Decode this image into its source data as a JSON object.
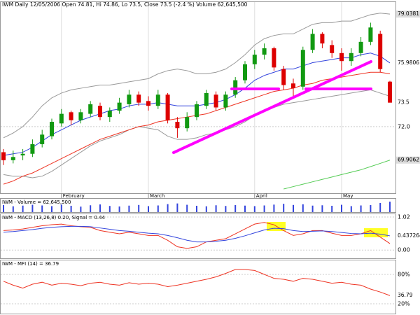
{
  "chart_data": [
    {
      "type": "candlestick",
      "title": "IWM Daily 12/05/2006 Open 74.81, Hi 74.86, Lo 73.5, Close 73.5 (-2.4 %) Volume 62,645,500",
      "categories": [
        null,
        null,
        null,
        null,
        null,
        null,
        "February",
        null,
        null,
        null,
        null,
        null,
        null,
        null,
        null,
        "March",
        null,
        null,
        null,
        null,
        null,
        null,
        null,
        null,
        null,
        null,
        "April",
        null,
        null,
        null,
        null,
        null,
        null,
        null,
        null,
        "May",
        null,
        null,
        null,
        null,
        null
      ],
      "open": [
        70.4,
        69.9,
        70.2,
        70.3,
        70.9,
        71.4,
        72.2,
        72.9,
        72.4,
        72.8,
        73.3,
        72.6,
        73.0,
        73.4,
        74.0,
        73.6,
        73.3,
        74.0,
        72.3,
        71.9,
        72.6,
        73.3,
        74.0,
        73.2,
        74.0,
        74.9,
        75.9,
        76.5,
        76.9,
        75.6,
        74.7,
        74.5,
        76.8,
        77.8,
        77.1,
        76.6,
        76.1,
        76.6,
        77.3,
        77.8,
        74.81
      ],
      "high": [
        70.6,
        70.5,
        70.6,
        71.2,
        71.8,
        72.5,
        73.1,
        73.0,
        73.1,
        73.6,
        73.5,
        73.2,
        73.8,
        74.3,
        74.2,
        73.9,
        74.3,
        74.1,
        72.6,
        72.9,
        73.6,
        74.3,
        74.2,
        74.2,
        75.1,
        76.1,
        76.8,
        77.2,
        77.0,
        75.8,
        75.0,
        77.0,
        78.1,
        77.9,
        77.4,
        76.9,
        76.9,
        77.6,
        78.5,
        78.0,
        74.86
      ],
      "low": [
        69.6,
        69.7,
        69.9,
        70.1,
        70.7,
        71.2,
        72.0,
        72.1,
        72.2,
        72.6,
        72.4,
        72.3,
        72.8,
        73.2,
        73.3,
        73.0,
        73.1,
        72.2,
        71.3,
        71.7,
        72.4,
        73.1,
        73.0,
        73.0,
        73.8,
        74.7,
        75.6,
        76.2,
        75.5,
        74.3,
        73.9,
        74.3,
        76.6,
        76.9,
        76.3,
        75.5,
        75.8,
        76.4,
        77.1,
        75.4,
        73.5
      ],
      "close": [
        69.9,
        70.1,
        70.3,
        70.9,
        71.5,
        72.3,
        72.8,
        72.4,
        72.9,
        73.4,
        72.6,
        73.0,
        73.5,
        74.0,
        73.5,
        73.3,
        74.0,
        72.4,
        71.9,
        72.6,
        73.4,
        74.1,
        73.2,
        74.0,
        74.9,
        75.9,
        76.5,
        76.9,
        75.7,
        74.6,
        74.4,
        76.8,
        77.8,
        77.2,
        76.6,
        76.1,
        76.6,
        77.3,
        78.2,
        75.6,
        73.5
      ],
      "up_color": "#119911",
      "down_color": "#dd0000",
      "series": [
        {
          "color": "#999999",
          "values": [
            71.3,
            71.6,
            72.0,
            72.6,
            73.3,
            73.8,
            74.1,
            74.3,
            74.4,
            74.5,
            74.6,
            74.6,
            74.7,
            74.8,
            74.9,
            75.0,
            75.3,
            75.5,
            75.6,
            75.5,
            75.3,
            75.3,
            75.4,
            75.6,
            76.0,
            76.5,
            77.1,
            77.5,
            77.7,
            77.8,
            77.8,
            78.1,
            78.4,
            78.5,
            78.5,
            78.6,
            78.6,
            78.8,
            79.0,
            79.1,
            79.0381
          ]
        },
        {
          "color": "#999999",
          "values": [
            69.0,
            68.9,
            68.9,
            68.8,
            68.9,
            69.2,
            69.6,
            70.0,
            70.4,
            70.8,
            71.1,
            71.3,
            71.5,
            71.8,
            72.0,
            71.9,
            71.8,
            71.4,
            71.2,
            71.2,
            71.3,
            71.5,
            71.6,
            71.8,
            72.0,
            72.3,
            72.7,
            73.0,
            73.2,
            73.4,
            73.5,
            73.6,
            73.7,
            73.8,
            73.9,
            74.0,
            74.1,
            74.2,
            74.3,
            74.1,
            73.9
          ]
        },
        {
          "color": "#3344dd",
          "values": [
            70.2,
            70.3,
            70.4,
            70.7,
            71.1,
            71.5,
            71.8,
            72.1,
            72.4,
            72.6,
            72.8,
            73.0,
            73.1,
            73.3,
            73.4,
            73.4,
            73.5,
            73.4,
            73.3,
            73.3,
            73.3,
            73.4,
            73.5,
            73.7,
            74.0,
            74.4,
            74.9,
            75.2,
            75.4,
            75.6,
            75.6,
            75.8,
            76.0,
            76.1,
            76.2,
            76.3,
            76.3,
            76.5,
            76.6,
            76.4,
            75.9806
          ]
        },
        {
          "color": "#ee3322",
          "values": [
            68.4,
            68.6,
            68.9,
            69.1,
            69.4,
            69.7,
            70.0,
            70.3,
            70.6,
            70.9,
            71.2,
            71.4,
            71.6,
            71.8,
            72.0,
            72.1,
            72.3,
            72.4,
            72.5,
            72.6,
            72.7,
            72.8,
            73.0,
            73.2,
            73.4,
            73.6,
            73.8,
            74.0,
            74.2,
            74.3,
            74.4,
            74.6,
            74.7,
            74.9,
            75.0,
            75.1,
            75.2,
            75.3,
            75.4,
            75.4,
            75.3
          ]
        },
        {
          "color": "#55cc55",
          "values": [
            null,
            null,
            null,
            null,
            null,
            null,
            null,
            null,
            null,
            null,
            null,
            null,
            null,
            null,
            null,
            null,
            null,
            null,
            null,
            null,
            null,
            null,
            null,
            null,
            null,
            null,
            null,
            null,
            null,
            68.1,
            68.25,
            68.4,
            68.55,
            68.7,
            68.85,
            69.0,
            69.15,
            69.3,
            69.5,
            69.7,
            69.9062
          ]
        }
      ],
      "ylim": [
        67.88,
        79.7
      ],
      "yticks": [
        {
          "value": 72,
          "label": "72.0"
        }
      ],
      "grid": true
    },
    {
      "type": "bar",
      "title": "IWM - Volume = 62,645,500",
      "color": "#3344dd",
      "values": [
        42000000,
        35000000,
        39000000,
        44000000,
        40000000,
        36000000,
        45000000,
        38000000,
        33000000,
        41000000,
        46000000,
        37000000,
        34000000,
        39000000,
        43000000,
        36000000,
        40000000,
        48000000,
        52000000,
        44000000,
        38000000,
        35000000,
        41000000,
        37000000,
        42000000,
        39000000,
        36000000,
        40000000,
        45000000,
        50000000,
        43000000,
        47000000,
        39000000,
        41000000,
        38000000,
        44000000,
        36000000,
        40000000,
        42000000,
        55000000,
        62645500
      ],
      "ylim": [
        0,
        80000000
      ]
    },
    {
      "type": "line",
      "title": "IWM - MACD (13,26,8) 0.20, Signal = 0.44",
      "series": [
        {
          "color": "#ee3322",
          "values": [
            0.6,
            0.62,
            0.65,
            0.7,
            0.75,
            0.78,
            0.8,
            0.75,
            0.72,
            0.7,
            0.6,
            0.55,
            0.5,
            0.55,
            0.5,
            0.45,
            0.45,
            0.3,
            0.1,
            0.05,
            0.1,
            0.25,
            0.3,
            0.35,
            0.5,
            0.65,
            0.8,
            0.85,
            0.78,
            0.6,
            0.45,
            0.5,
            0.6,
            0.6,
            0.52,
            0.45,
            0.45,
            0.5,
            0.6,
            0.4,
            0.2
          ]
        },
        {
          "color": "#3344dd",
          "values": [
            0.55,
            0.57,
            0.6,
            0.63,
            0.67,
            0.7,
            0.72,
            0.73,
            0.73,
            0.72,
            0.68,
            0.64,
            0.6,
            0.58,
            0.55,
            0.52,
            0.5,
            0.45,
            0.38,
            0.3,
            0.25,
            0.25,
            0.27,
            0.3,
            0.36,
            0.44,
            0.53,
            0.62,
            0.67,
            0.66,
            0.6,
            0.57,
            0.58,
            0.59,
            0.57,
            0.54,
            0.51,
            0.5,
            0.52,
            0.49,
            0.437264
          ]
        }
      ],
      "ylim": [
        -0.255,
        1.105
      ],
      "yticks": [
        1.02,
        {
          "value": 0,
          "label": "0.00"
        }
      ]
    },
    {
      "type": "line",
      "title": "IWM - MFI (14) = 36.79",
      "series": [
        {
          "color": "#ee3322",
          "values": [
            66,
            58,
            52,
            60,
            64,
            58,
            62,
            60,
            57,
            62,
            64,
            60,
            58,
            63,
            60,
            62,
            60,
            55,
            58,
            62,
            66,
            70,
            75,
            82,
            90,
            90,
            88,
            80,
            72,
            70,
            66,
            72,
            70,
            66,
            62,
            64,
            60,
            58,
            50,
            44,
            36.79
          ]
        }
      ],
      "ylim": [
        0,
        108.57
      ],
      "yticks": [
        {
          "value": 80,
          "label": "80%"
        },
        {
          "value": 20,
          "label": "20%"
        }
      ]
    }
  ]
}
